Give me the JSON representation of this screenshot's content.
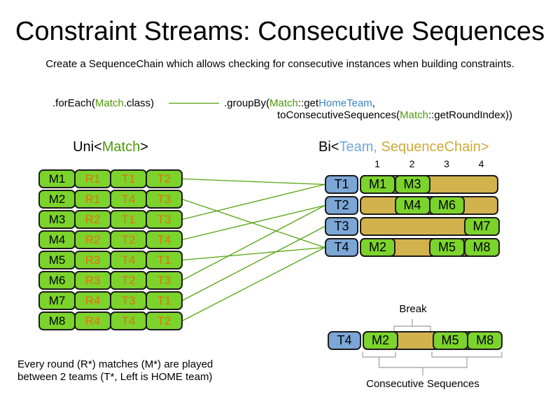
{
  "title": "Constraint Streams: Consecutive Sequences",
  "subtitle": "Create a SequenceChain which allows checking for consecutive instances when building constraints.",
  "code": {
    "foreach_pre": ".forEach(",
    "foreach_class": "Match",
    "foreach_post": ".class)",
    "groupby_pre": ".groupBy(",
    "groupby_class": "Match",
    "groupby_mid": "::get",
    "groupby_home": "HomeTeam",
    "groupby_comma": ",",
    "line2_pre": "toConsecutiveSequences(",
    "line2_class": "Match",
    "line2_post": "::getRoundIndex))"
  },
  "uni_label": {
    "pre": "Uni<",
    "type": "Match",
    "post": ">"
  },
  "bi_label": {
    "pre": "Bi<",
    "team": "Team",
    "comma": ", ",
    "chain": "SequenceChain",
    "post": ">"
  },
  "uni_table": {
    "rows": [
      [
        "M1",
        "R1",
        "T1",
        "T2"
      ],
      [
        "M2",
        "R1",
        "T4",
        "T3"
      ],
      [
        "M3",
        "R2",
        "T1",
        "T3"
      ],
      [
        "M4",
        "R2",
        "T2",
        "T4"
      ],
      [
        "M5",
        "R3",
        "T4",
        "T1"
      ],
      [
        "M6",
        "R3",
        "T2",
        "T3"
      ],
      [
        "M7",
        "R4",
        "T3",
        "T1"
      ],
      [
        "M8",
        "R4",
        "T4",
        "T2"
      ]
    ]
  },
  "bi_table": {
    "columns": [
      "1",
      "2",
      "3",
      "4"
    ],
    "rows": [
      {
        "team": "T1",
        "blocks": [
          {
            "col": 0,
            "label": "M1"
          },
          {
            "col": 1,
            "label": "M3"
          }
        ]
      },
      {
        "team": "T2",
        "blocks": [
          {
            "col": 1,
            "label": "M4"
          },
          {
            "col": 2,
            "label": "M6"
          }
        ]
      },
      {
        "team": "T3",
        "blocks": [
          {
            "col": 3,
            "label": "M7"
          }
        ]
      },
      {
        "team": "T4",
        "blocks": [
          {
            "col": 0,
            "label": "M2"
          },
          {
            "col": 2,
            "label": "M5"
          },
          {
            "col": 3,
            "label": "M8"
          }
        ]
      }
    ]
  },
  "connections": [
    [
      "M1",
      "T1"
    ],
    [
      "M2",
      "T4"
    ],
    [
      "M3",
      "T1"
    ],
    [
      "M4",
      "T2"
    ],
    [
      "M5",
      "T4"
    ],
    [
      "M6",
      "T2"
    ],
    [
      "M7",
      "T3"
    ],
    [
      "M8",
      "T4"
    ]
  ],
  "break_figure": {
    "team": "T4",
    "blocks": [
      {
        "col": 0,
        "label": "M2"
      },
      {
        "col": 2,
        "label": "M5"
      },
      {
        "col": 3,
        "label": "M8"
      }
    ],
    "break_label": "Break",
    "sequences_label": "Consecutive Sequences"
  },
  "note": {
    "line1": "Every round (R*) matches (M*) are played",
    "line2": "between 2 teams (T*, Left is HOME team)"
  },
  "colors": {
    "green": "#7CD32C",
    "blue": "#7BA6D6",
    "tan": "#D2B24C",
    "orange": "#E0730F",
    "line-green": "#56A40F",
    "code-green": "#4C9A06",
    "code-blue": "#3D85C6",
    "team-blue": "#6FA8DC",
    "gold": "#D1A937"
  }
}
